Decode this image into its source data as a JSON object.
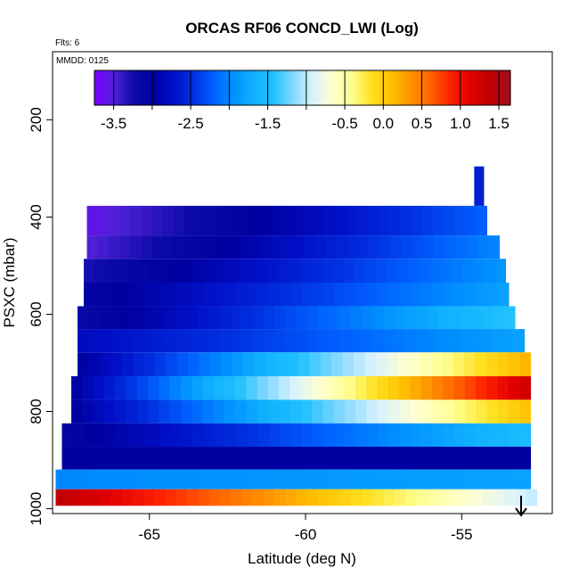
{
  "chart_data": {
    "type": "heatmap",
    "title": "ORCAS RF06 CONCD_LWI (Log)",
    "annotations": [
      "Flts: 6",
      "MMDD: 0125"
    ],
    "xlabel": "Latitude (deg N)",
    "ylabel": "PSXC (mbar)",
    "x_ticks": [
      -65,
      -60,
      -55
    ],
    "y_ticks": [
      200,
      400,
      600,
      800,
      1000
    ],
    "xlim": [
      -68.1,
      -52.1
    ],
    "ylim": [
      1010,
      60
    ],
    "y_reversed": true,
    "grid": false,
    "colorbar": {
      "position": "top-inside",
      "range": [
        -3.75,
        1.65
      ],
      "tick_labels": [
        "-3.5",
        "-2.5",
        "-1.5",
        "-0.5",
        "0.0",
        "0.5",
        "1.0",
        "1.5"
      ],
      "tick_values": [
        -3.5,
        -2.5,
        -1.5,
        -0.5,
        0.0,
        0.5,
        1.0,
        1.5
      ],
      "minor_ticks": [
        -3.0,
        -2.0,
        -1.0
      ],
      "palette": [
        "#7a00ff",
        "#5020d8",
        "#0a0aa8",
        "#0000a0",
        "#0010c8",
        "#0030e0",
        "#0060ff",
        "#0090ff",
        "#10b0ff",
        "#20c0ff",
        "#80d8ff",
        "#d8f2ff",
        "#ffffd0",
        "#ffff90",
        "#ffe020",
        "#ffc000",
        "#ff9000",
        "#ff6000",
        "#ff2000",
        "#e00000",
        "#c00000",
        "#a01020"
      ]
    },
    "layers": [
      {
        "pressure": 977,
        "lat_start": -68.0,
        "lat_end": -52.6,
        "value_start": 1.4,
        "value_end": -1.0
      },
      {
        "pressure": 943,
        "lat_start": -68.0,
        "lat_end": -52.8,
        "value_start": -2.0,
        "value_end": -1.8
      },
      {
        "pressure": 896,
        "lat_start": -67.8,
        "lat_end": -52.8,
        "value_start": -3.0,
        "value_end": -3.0
      },
      {
        "pressure": 849,
        "lat_start": -67.8,
        "lat_end": -52.8,
        "value_start": -3.1,
        "value_end": -1.5
      },
      {
        "pressure": 800,
        "lat_start": -67.5,
        "lat_end": -52.8,
        "value_start": -3.0,
        "value_end": 0.1
      },
      {
        "pressure": 752,
        "lat_start": -67.5,
        "lat_end": -52.8,
        "value_start": -3.0,
        "value_end": 1.3
      },
      {
        "pressure": 703,
        "lat_start": -67.3,
        "lat_end": -52.8,
        "value_start": -3.0,
        "value_end": 0.2
      },
      {
        "pressure": 654,
        "lat_start": -67.3,
        "lat_end": -53.0,
        "value_start": -2.8,
        "value_end": -1.8
      },
      {
        "pressure": 607,
        "lat_start": -67.3,
        "lat_end": -53.3,
        "value_start": -3.2,
        "value_end": -1.4
      },
      {
        "pressure": 560,
        "lat_start": -67.1,
        "lat_end": -53.5,
        "value_start": -3.1,
        "value_end": -1.8
      },
      {
        "pressure": 510,
        "lat_start": -67.1,
        "lat_end": -53.6,
        "value_start": -3.3,
        "value_end": -1.9
      },
      {
        "pressure": 462,
        "lat_start": -67.0,
        "lat_end": -53.8,
        "value_start": -3.5,
        "value_end": -2.0
      },
      {
        "pressure": 414,
        "lat_start": -67.0,
        "lat_end": -54.2,
        "value_start": -3.6,
        "value_end": -2.2
      },
      {
        "pressure": 340,
        "lat_start": -54.6,
        "lat_end": -54.3,
        "value_start": -2.6,
        "value_end": -2.6
      }
    ]
  }
}
